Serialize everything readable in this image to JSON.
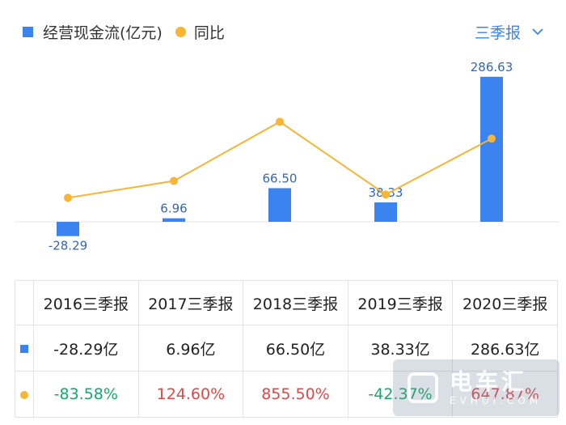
{
  "legend": {
    "bar_label": "经营现金流(亿元)",
    "line_label": "同比",
    "bar_color": "#3b83ee",
    "line_color": "#f6b535"
  },
  "period_selector": {
    "label": "三季报",
    "icon": "chevron-down-icon"
  },
  "chart_data": {
    "type": "bar",
    "categories": [
      "2016三季报",
      "2017三季报",
      "2018三季报",
      "2019三季报",
      "2020三季报"
    ],
    "series": [
      {
        "name": "经营现金流(亿元)",
        "type": "bar",
        "values": [
          -28.29,
          6.96,
          66.5,
          38.33,
          286.63
        ],
        "labels": [
          "-28.29",
          "6.96",
          "66.50",
          "38.33",
          "286.63"
        ]
      },
      {
        "name": "同比",
        "type": "line",
        "values": [
          -83.58,
          124.6,
          855.5,
          -42.37,
          647.87
        ]
      }
    ]
  },
  "table": {
    "headers": [
      "2016三季报",
      "2017三季报",
      "2018三季报",
      "2019三季报",
      "2020三季报"
    ],
    "flow_row": [
      "-28.29亿",
      "6.96亿",
      "66.50亿",
      "38.33亿",
      "286.63亿"
    ],
    "yoy_row": [
      "-83.58%",
      "124.60%",
      "855.50%",
      "-42.37%",
      "647.87%"
    ]
  },
  "watermark": {
    "text": "电车汇",
    "sub": "EVHUI.COM"
  }
}
